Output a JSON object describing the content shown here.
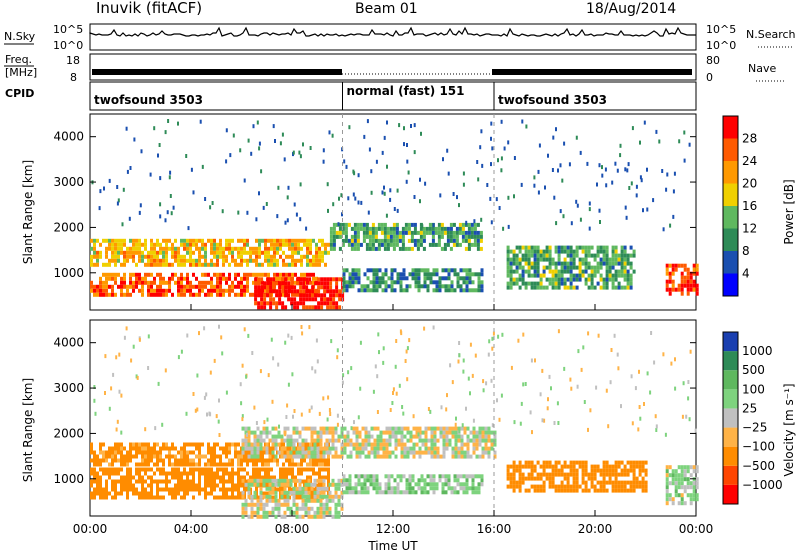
{
  "header": {
    "station": "Inuvik (fitACF)",
    "beam": "Beam 01",
    "date": "18/Aug/2014"
  },
  "params": {
    "nsky_label": "N.Sky",
    "nsky_ticks": [
      "10^5",
      "10^0"
    ],
    "nsearch_label": "N.Search",
    "nsearch_ticks": [
      "10^5",
      "10^0"
    ],
    "freq_label_1": "Freq.",
    "freq_label_2": "[MHz]",
    "freq_ticks": [
      "18",
      "8"
    ],
    "nave_label": "Nave",
    "nave_ticks": [
      "80",
      "0"
    ],
    "cpid_label": "CPID",
    "modes": [
      {
        "name": "twofsound 3503",
        "start": 0,
        "end": 10
      },
      {
        "name": "normal (fast) 151",
        "start": 10,
        "end": 16
      },
      {
        "name": "twofsound 3503",
        "start": 16,
        "end": 24
      }
    ]
  },
  "chart_data": [
    {
      "type": "heatmap",
      "title": "",
      "quantity": "Power",
      "xlabel": "",
      "ylabel": "Slant Range [km]",
      "xlim": [
        0,
        24
      ],
      "ylim": [
        180,
        4500
      ],
      "x_tick_labels": [
        "00:00",
        "04:00",
        "08:00",
        "12:00",
        "16:00",
        "20:00",
        "00:00"
      ],
      "y_ticks": [
        1000,
        2000,
        3000,
        4000
      ],
      "colorbar": {
        "label": "Power [dB]",
        "ticks": [
          "4",
          "8",
          "12",
          "16",
          "20",
          "24",
          "28"
        ],
        "colors": [
          "#0000ff",
          "#1a4fb0",
          "#2e8b57",
          "#5fb85f",
          "#f0d000",
          "#ff9900",
          "#ff5a00",
          "#ff0000"
        ]
      },
      "echo_bands": [
        {
          "t0": 0,
          "t1": 9.5,
          "r0": 1150,
          "r1": 1750,
          "level": 20
        },
        {
          "t0": 0,
          "t1": 9.0,
          "r0": 550,
          "r1": 1000,
          "level": 26
        },
        {
          "t0": 6.5,
          "t1": 10.0,
          "r0": 200,
          "r1": 900,
          "level": 30
        },
        {
          "t0": 9.5,
          "t1": 15.5,
          "r0": 1500,
          "r1": 2100,
          "level": 12
        },
        {
          "t0": 10.0,
          "t1": 15.5,
          "r0": 600,
          "r1": 1100,
          "level": 10
        },
        {
          "t0": 16.5,
          "t1": 21.5,
          "r0": 700,
          "r1": 1600,
          "level": 12
        },
        {
          "t0": 22.8,
          "t1": 24.0,
          "r0": 500,
          "r1": 1200,
          "level": 28
        }
      ]
    },
    {
      "type": "heatmap",
      "title": "",
      "quantity": "Velocity",
      "xlabel": "Time UT",
      "ylabel": "Slant Range [km]",
      "xlim": [
        0,
        24
      ],
      "ylim": [
        180,
        4500
      ],
      "x_tick_labels": [
        "00:00",
        "04:00",
        "08:00",
        "12:00",
        "16:00",
        "20:00",
        "00:00"
      ],
      "y_ticks": [
        1000,
        2000,
        3000,
        4000
      ],
      "colorbar": {
        "label": "Velocity [m s⁻¹]",
        "ticks": [
          "1000",
          "500",
          "100",
          "25",
          "−25",
          "−100",
          "−500",
          "−1000"
        ],
        "colors": [
          "#1a3fb0",
          "#2e8b57",
          "#5fb85f",
          "#7ed37e",
          "#c0c0c0",
          "#ffb347",
          "#ff8c00",
          "#ff4500",
          "#ff0000"
        ]
      },
      "echo_bands": [
        {
          "t0": 0,
          "t1": 9.5,
          "r0": 550,
          "r1": 1250,
          "level": -300
        },
        {
          "t0": 0,
          "t1": 9.5,
          "r0": 1300,
          "r1": 1800,
          "level": -150
        },
        {
          "t0": 6.0,
          "t1": 16.0,
          "r0": 1500,
          "r1": 2150,
          "level": 0
        },
        {
          "t0": 6.0,
          "t1": 10.0,
          "r0": 200,
          "r1": 1000,
          "level": 10
        },
        {
          "t0": 10.0,
          "t1": 15.5,
          "r0": 700,
          "r1": 1100,
          "level": 60
        },
        {
          "t0": 16.5,
          "t1": 22.0,
          "r0": 700,
          "r1": 1400,
          "level": -200
        },
        {
          "t0": 22.8,
          "t1": 24.0,
          "r0": 500,
          "r1": 1300,
          "level": 40
        }
      ]
    }
  ]
}
